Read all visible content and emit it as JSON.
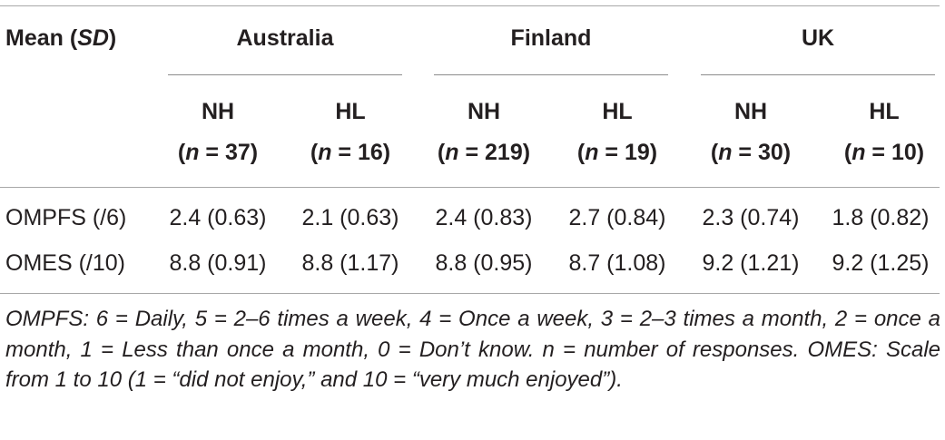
{
  "table": {
    "stub_header": {
      "prefix": "Mean (",
      "italic": "SD",
      "suffix": ")"
    },
    "countries": [
      "Australia",
      "Finland",
      "UK"
    ],
    "columns": [
      {
        "group": "NH",
        "n_prefix": "(",
        "n_var": "n",
        "n_rest": " = 37)"
      },
      {
        "group": "HL",
        "n_prefix": "(",
        "n_var": "n",
        "n_rest": " = 16)"
      },
      {
        "group": "NH",
        "n_prefix": "(",
        "n_var": "n",
        "n_rest": " = 219)"
      },
      {
        "group": "HL",
        "n_prefix": "(",
        "n_var": "n",
        "n_rest": " = 19)"
      },
      {
        "group": "NH",
        "n_prefix": "(",
        "n_var": "n",
        "n_rest": " = 30)"
      },
      {
        "group": "HL",
        "n_prefix": "(",
        "n_var": "n",
        "n_rest": " = 10)"
      }
    ],
    "rows": [
      {
        "label": "OMPFS (/6)",
        "values": [
          "2.4 (0.63)",
          "2.1 (0.63)",
          "2.4 (0.83)",
          "2.7 (0.84)",
          "2.3 (0.74)",
          "1.8 (0.82)"
        ]
      },
      {
        "label": "OMES (/10)",
        "values": [
          "8.8 (0.91)",
          "8.8 (1.17)",
          "8.8 (0.95)",
          "8.7 (1.08)",
          "9.2 (1.21)",
          "9.2 (1.25)"
        ]
      }
    ]
  },
  "footnote": "OMPFS: 6 = Daily, 5 = 2–6 times a week, 4 = Once a week, 3 = 2–3 times a month, 2 = once a month, 1 = Less than once a month, 0 = Don’t know. n = number of responses. OMES: Scale from 1 to 10 (1 = “did not enjoy,” and 10 = “very much enjoyed”)."
}
